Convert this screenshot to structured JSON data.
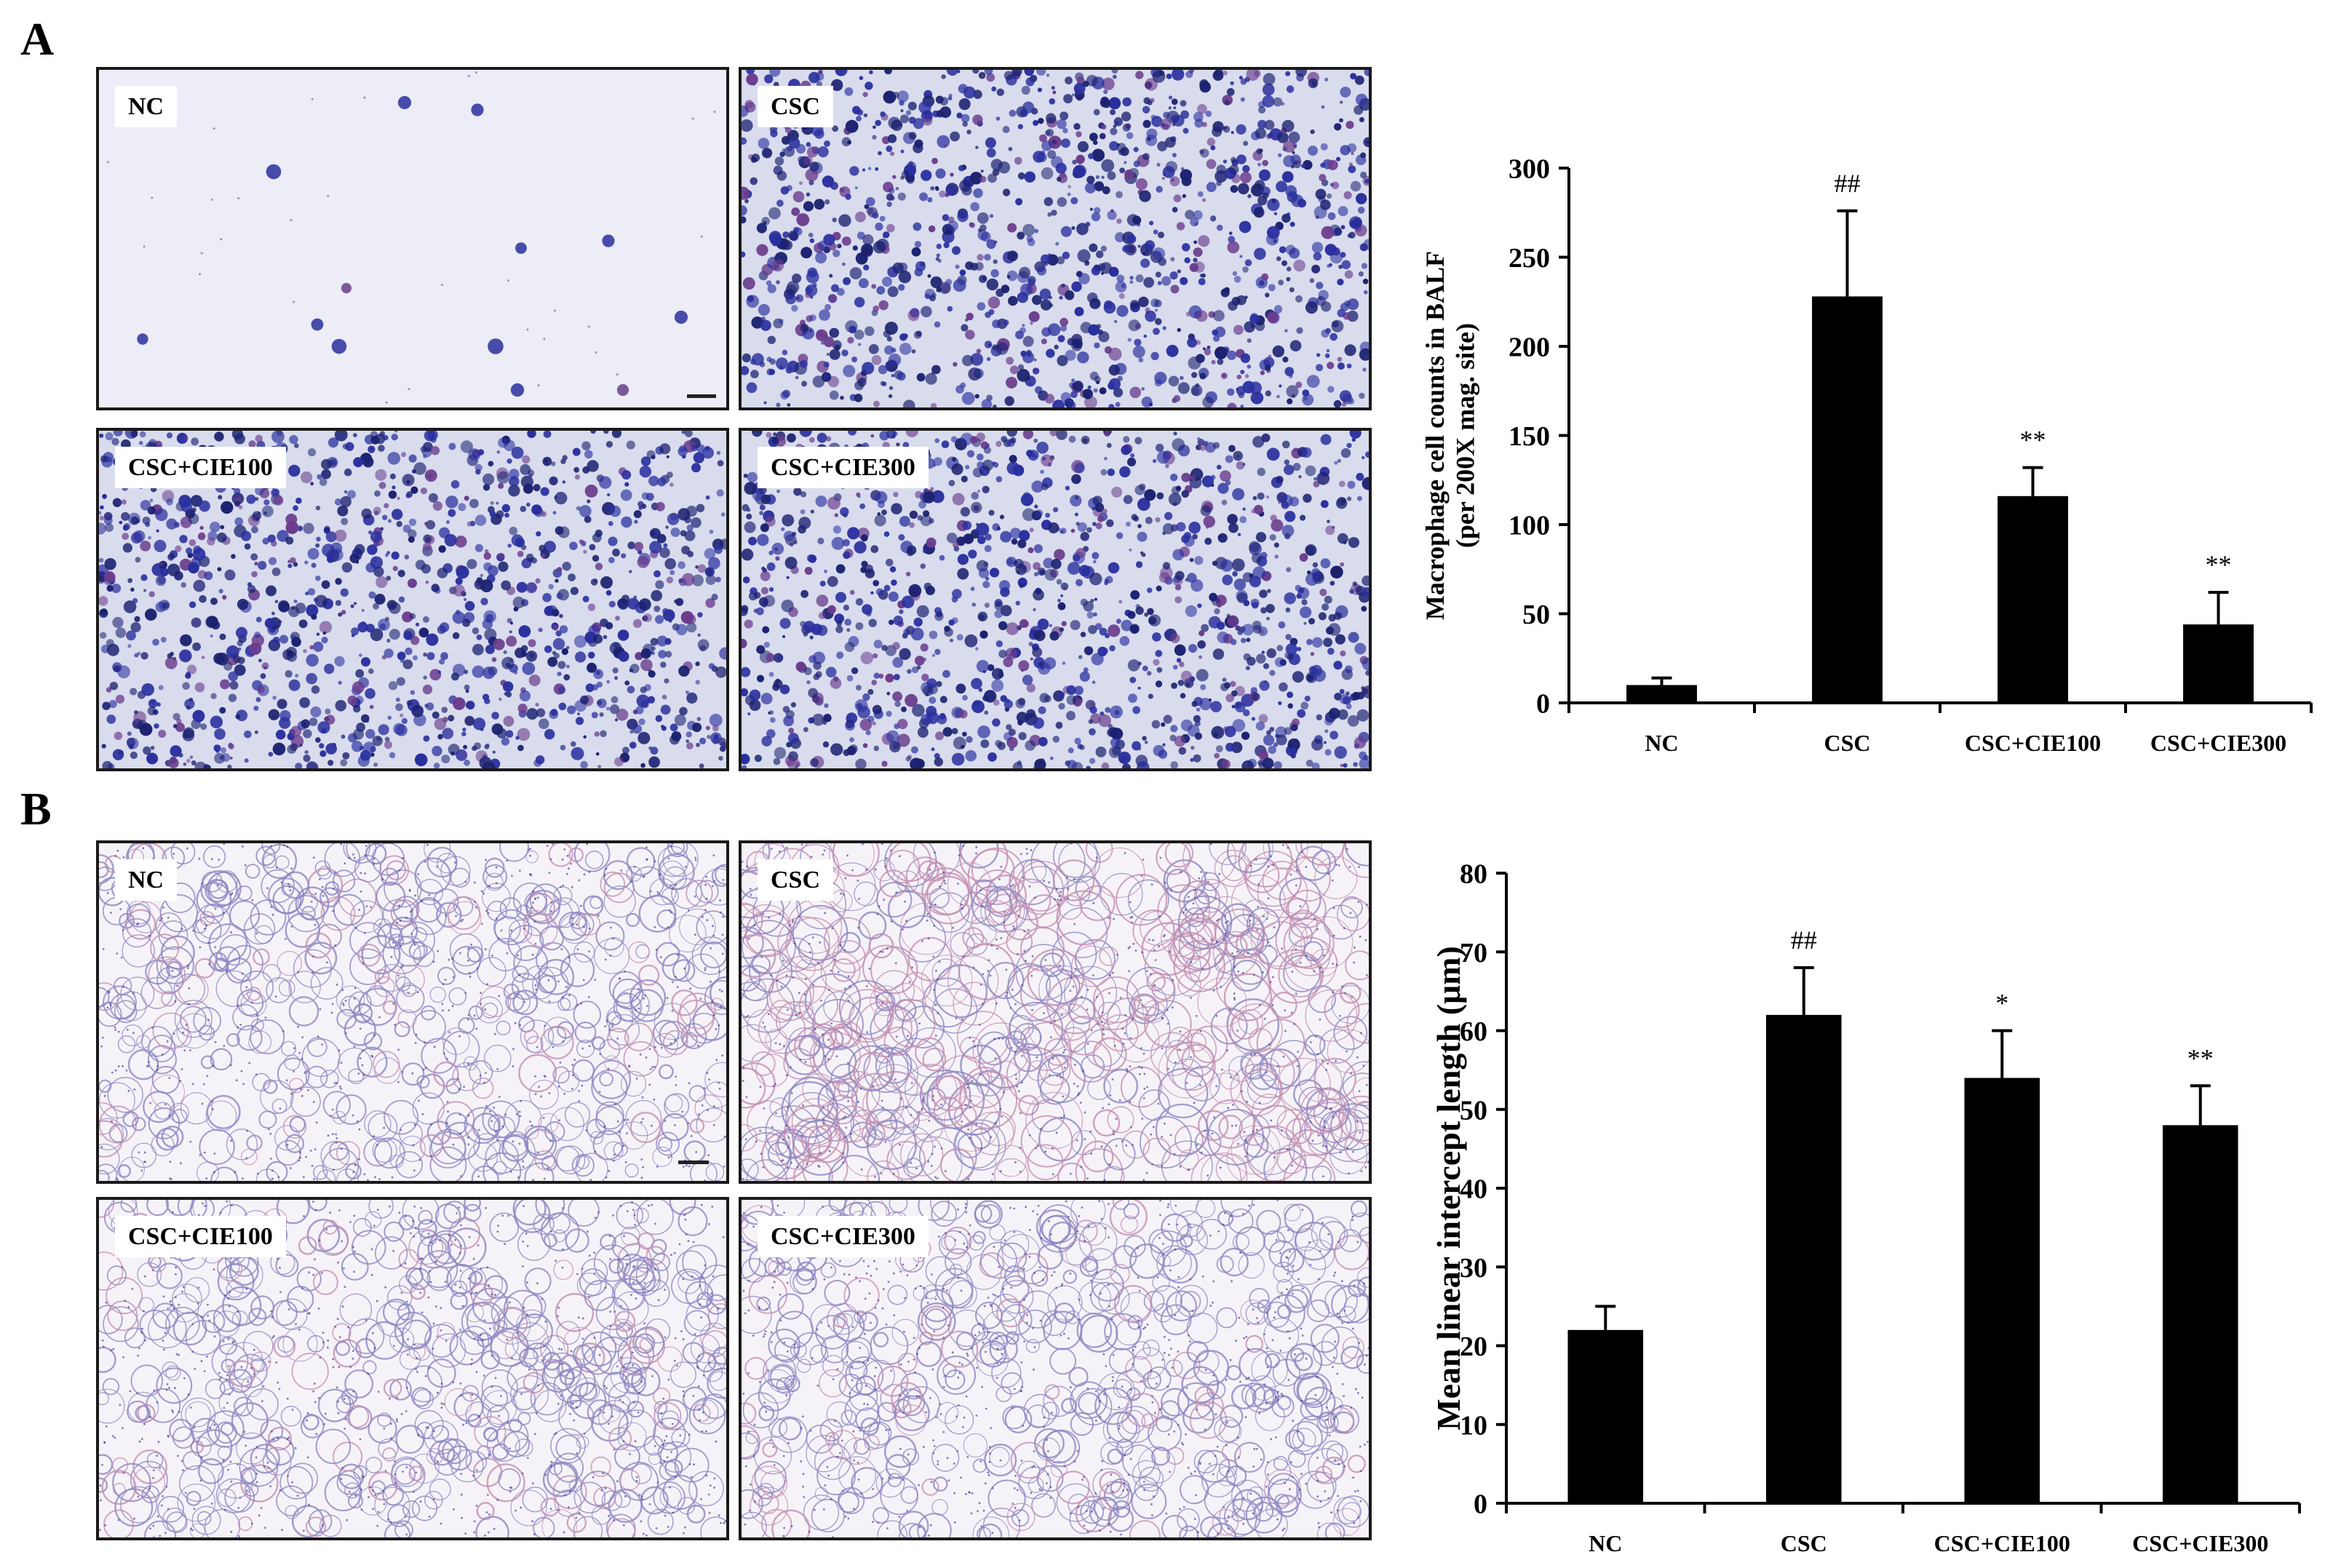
{
  "figure": {
    "panel_a_letter": "A",
    "panel_b_letter": "B",
    "colors": {
      "bar": "#000000",
      "stain_a_background": "#ecedf6",
      "stain_a_cell": "#2a2f9e",
      "stain_a_cell_alt": "#6a3c8c",
      "stain_b_background": "#f6f3f8",
      "stain_b_tissue": "#8c86c2",
      "stain_b_tissue_alt": "#c48fb0"
    }
  },
  "panel_a": {
    "images": [
      {
        "label": "NC",
        "density": "sparse",
        "scalebar": true
      },
      {
        "label": "CSC",
        "density": "dense",
        "scalebar": false
      },
      {
        "label": "CSC+CIE100",
        "density": "dense",
        "scalebar": false
      },
      {
        "label": "CSC+CIE300",
        "density": "dense",
        "scalebar": false
      }
    ]
  },
  "panel_b": {
    "images": [
      {
        "label": "NC",
        "scalebar": true
      },
      {
        "label": "CSC",
        "scalebar": false
      },
      {
        "label": "CSC+CIE100",
        "scalebar": false
      },
      {
        "label": "CSC+CIE300",
        "scalebar": false
      }
    ]
  },
  "chart_data": [
    {
      "type": "bar",
      "categories": [
        "NC",
        "CSC",
        "CSC+CIE100",
        "CSC+CIE300"
      ],
      "values": [
        10,
        228,
        116,
        44
      ],
      "errors": [
        4,
        48,
        16,
        18
      ],
      "annotations": [
        "",
        "##",
        "**",
        "**"
      ],
      "title": "",
      "xlabel": "",
      "ylabel_lines": [
        "Macrophage cell counts in BALF",
        "(per 200X mag. site)"
      ],
      "ylim": [
        0,
        300
      ],
      "yticks": [
        "0",
        "50",
        "100",
        "150",
        "200",
        "250",
        "300"
      ],
      "grid": false,
      "legend": "none"
    },
    {
      "type": "bar",
      "categories": [
        "NC",
        "CSC",
        "CSC+CIE100",
        "CSC+CIE300"
      ],
      "values": [
        22,
        62,
        54,
        48
      ],
      "errors": [
        3,
        6,
        6,
        5
      ],
      "annotations": [
        "",
        "##",
        "*",
        "**"
      ],
      "title": "",
      "xlabel": "",
      "ylabel_lines": [
        "Mean linear intercept length (μm)"
      ],
      "ylim": [
        0,
        80
      ],
      "yticks": [
        "0",
        "10",
        "20",
        "30",
        "40",
        "50",
        "60",
        "70",
        "80"
      ],
      "grid": false,
      "legend": "none"
    }
  ]
}
